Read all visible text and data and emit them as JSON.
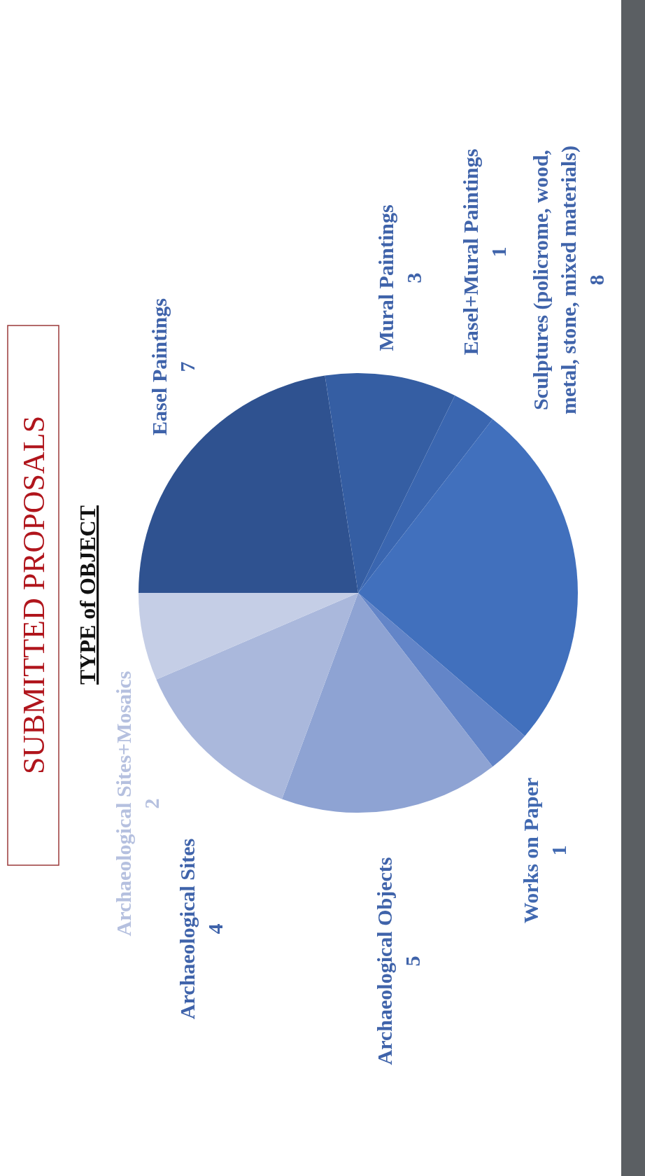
{
  "chart_data": {
    "type": "pie",
    "title": "SUBMITTED PROPOSALS",
    "subtitle": "TYPE of OBJECT",
    "categories": [
      "Easel Paintings",
      "Mural Paintings",
      "Easel+Mural Paintings",
      "Sculptures (policrome, wood, metal, stone, mixed materials)",
      "Works on Paper",
      "Archaeological Objects",
      "Archaeological Sites",
      "Archaeological Sites+Mosaics"
    ],
    "values": [
      7,
      3,
      1,
      8,
      1,
      5,
      4,
      2
    ],
    "colors": [
      "#2f5290",
      "#355ea3",
      "#3a66b0",
      "#4170bd",
      "#6385c8",
      "#8ea3d3",
      "#aab8dc",
      "#c5cee6"
    ],
    "data_labels": true
  }
}
